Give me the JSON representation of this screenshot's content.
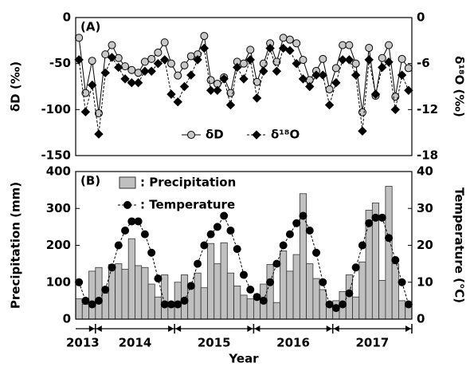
{
  "chart_data": [
    {
      "type": "line",
      "panel_label": "(A)",
      "y_label": "δD (‰)",
      "y2_label": "δ¹⁸O (‰)",
      "categories": [
        "2013",
        "2013",
        "2013",
        "2014",
        "2014",
        "2014",
        "2014",
        "2014",
        "2014",
        "2014",
        "2014",
        "2014",
        "2014",
        "2014",
        "2014",
        "2015",
        "2015",
        "2015",
        "2015",
        "2015",
        "2015",
        "2015",
        "2015",
        "2015",
        "2015",
        "2015",
        "2015",
        "2016",
        "2016",
        "2016",
        "2016",
        "2016",
        "2016",
        "2016",
        "2016",
        "2016",
        "2016",
        "2016",
        "2016",
        "2017",
        "2017",
        "2017",
        "2017",
        "2017",
        "2017",
        "2017",
        "2017",
        "2017",
        "2017",
        "2017",
        "2017"
      ],
      "ylim": [
        -150,
        0
      ],
      "yticks": [
        -150,
        -100,
        -50,
        0
      ],
      "y2lim": [
        -18,
        0
      ],
      "y2ticks": [
        -18,
        -12,
        -6,
        0
      ],
      "legend": "bottom",
      "series": [
        {
          "name": "δD",
          "type": "line",
          "marker": "circle",
          "color": "#c8c8c8",
          "dashed": false,
          "values": [
            -22,
            -82,
            -47,
            -104,
            -40,
            -30,
            -44,
            -53,
            -57,
            -60,
            -48,
            -45,
            -38,
            -27,
            -50,
            -63,
            -52,
            -42,
            -40,
            -20,
            -68,
            -72,
            -65,
            -82,
            -48,
            -50,
            -35,
            -70,
            -50,
            -28,
            -48,
            -22,
            -24,
            -28,
            -46,
            -68,
            -58,
            -45,
            -78,
            -55,
            -30,
            -30,
            -50,
            -103,
            -33,
            -85,
            -44,
            -30,
            -86,
            -45,
            -55
          ]
        },
        {
          "name": "δ¹⁸O",
          "type": "line",
          "marker": "diamond",
          "color": "#000000",
          "dashed": true,
          "axis": "y2",
          "values": [
            -5.5,
            -12.3,
            -8.8,
            -15.2,
            -7.2,
            -5.2,
            -6.5,
            -8,
            -8.5,
            -8.5,
            -7,
            -7,
            -6,
            -5.5,
            -10,
            -11,
            -9,
            -7.5,
            -5.5,
            -4,
            -9.5,
            -9.5,
            -8,
            -11.4,
            -6.5,
            -8,
            -5.5,
            -10.5,
            -7,
            -4,
            -7,
            -4,
            -4.3,
            -6,
            -8,
            -9,
            -7.5,
            -7.5,
            -11.4,
            -8.5,
            -5.5,
            -5.5,
            -7.5,
            -14.8,
            -5.5,
            -10,
            -6.5,
            -5.8,
            -12,
            -7.5,
            -9.5
          ]
        }
      ]
    },
    {
      "type": "bar_line",
      "panel_label": "(B)",
      "y_label": "Precipitation  (mm)",
      "y2_label": "Temperature (℃)",
      "x_label": "Year",
      "categories": [
        "2013",
        "2013",
        "2013",
        "2014",
        "2014",
        "2014",
        "2014",
        "2014",
        "2014",
        "2014",
        "2014",
        "2014",
        "2014",
        "2014",
        "2014",
        "2015",
        "2015",
        "2015",
        "2015",
        "2015",
        "2015",
        "2015",
        "2015",
        "2015",
        "2015",
        "2015",
        "2015",
        "2016",
        "2016",
        "2016",
        "2016",
        "2016",
        "2016",
        "2016",
        "2016",
        "2016",
        "2016",
        "2016",
        "2016",
        "2017",
        "2017",
        "2017",
        "2017",
        "2017",
        "2017",
        "2017",
        "2017",
        "2017",
        "2017",
        "2017",
        "2017"
      ],
      "ylim": [
        0,
        400
      ],
      "yticks": [
        0,
        100,
        200,
        300,
        400
      ],
      "y2lim": [
        0,
        40
      ],
      "y2ticks": [
        0,
        10,
        20,
        30,
        40
      ],
      "legend": "top-left",
      "series": [
        {
          "name": ": Precipitation",
          "type": "bar",
          "color": "#c0c0c0",
          "values": [
            55,
            40,
            130,
            140,
            70,
            148,
            150,
            135,
            218,
            145,
            140,
            95,
            60,
            120,
            45,
            100,
            120,
            95,
            125,
            85,
            205,
            150,
            207,
            125,
            90,
            65,
            55,
            60,
            95,
            148,
            45,
            185,
            130,
            175,
            340,
            150,
            110,
            80,
            40,
            50,
            75,
            120,
            60,
            155,
            295,
            315,
            105,
            360,
            150,
            50,
            40
          ]
        },
        {
          "name": ": Temperature",
          "type": "line",
          "marker": "circle",
          "color": "#000000",
          "dashed": true,
          "axis": "y2",
          "values": [
            10,
            5,
            4,
            5,
            8,
            14,
            20,
            24,
            26.5,
            26.5,
            23,
            18,
            11,
            4,
            4,
            4,
            5,
            9,
            15,
            20,
            23,
            25,
            28,
            24,
            19,
            12,
            8,
            6,
            5,
            10,
            15,
            20,
            23,
            26,
            28,
            24,
            18,
            10,
            4,
            3,
            4,
            7,
            14,
            20,
            26,
            27.5,
            27.5,
            22,
            16,
            10,
            4
          ]
        }
      ]
    }
  ]
}
